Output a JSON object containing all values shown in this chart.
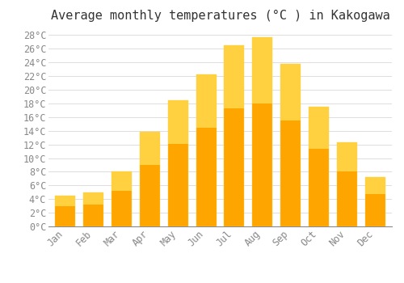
{
  "title": "Average monthly temperatures (°C ) in Kakogawa",
  "months": [
    "Jan",
    "Feb",
    "Mar",
    "Apr",
    "May",
    "Jun",
    "Jul",
    "Aug",
    "Sep",
    "Oct",
    "Nov",
    "Dec"
  ],
  "temperatures": [
    4.5,
    5.0,
    8.0,
    13.8,
    18.5,
    22.2,
    26.5,
    27.7,
    23.8,
    17.5,
    12.3,
    7.2
  ],
  "bar_color_main": "#FFA500",
  "bar_color_light": "#FFD040",
  "background_color": "#FFFFFF",
  "grid_color": "#DDDDDD",
  "ylim": [
    0,
    29
  ],
  "ytick_values": [
    0,
    2,
    4,
    6,
    8,
    10,
    12,
    14,
    16,
    18,
    20,
    22,
    24,
    26,
    28
  ],
  "title_fontsize": 11,
  "tick_fontsize": 8.5,
  "font_family": "monospace"
}
